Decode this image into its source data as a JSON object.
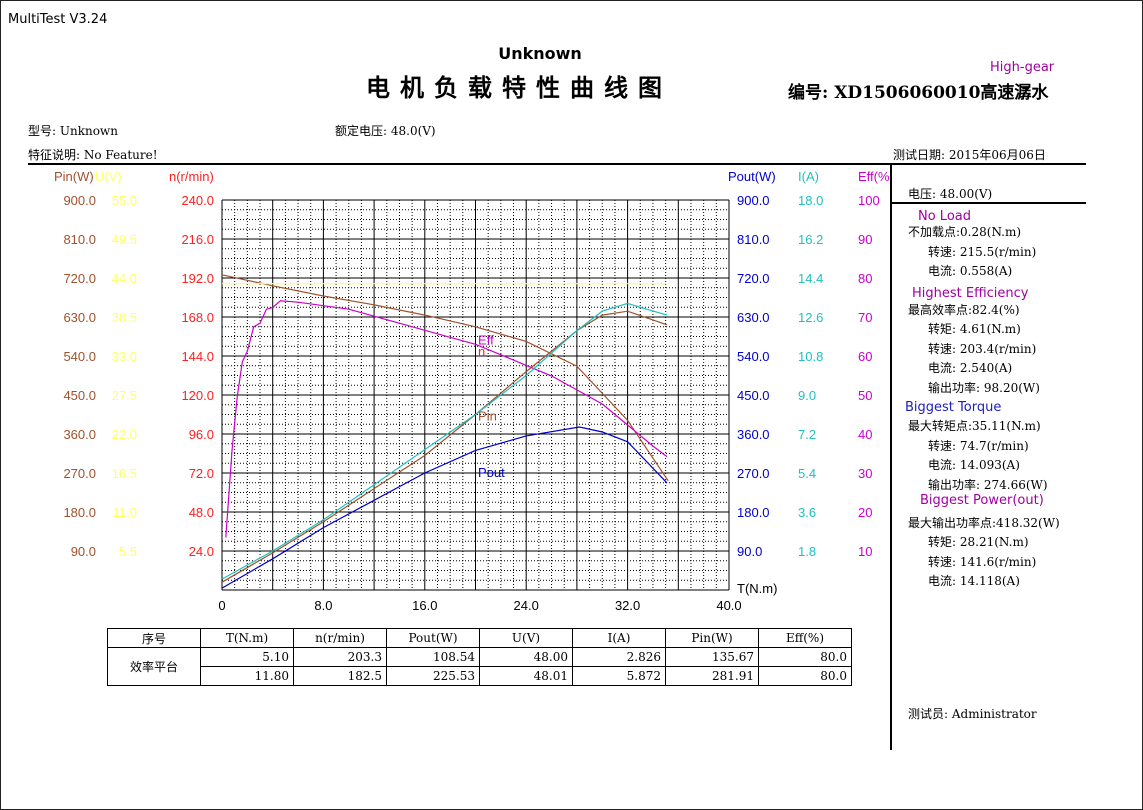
{
  "app_title": "MultiTest V3.24",
  "header": {
    "model_top": "Unknown",
    "main_title": "电机负载特性曲线图",
    "gear": "High-gear",
    "serial": "编号: XD1506060010高速潺水"
  },
  "info": {
    "model": "型号: Unknown",
    "rated_voltage": "额定电压: 48.0(V)",
    "feature": "特征说明: No Feature!",
    "test_date": "测试日期: 2015年06月06日"
  },
  "colors": {
    "pin": "#a0522d",
    "u": "#ffff66",
    "n": "#ff2020",
    "pout": "#0000cc",
    "i": "#20c0c0",
    "eff": "#cc00cc",
    "grid": "#000000"
  },
  "chart_data": {
    "type": "line",
    "xlabel": "T(N.m)",
    "xlim": [
      0,
      40
    ],
    "x_ticks": [
      "0",
      "8.0",
      "16.0",
      "24.0",
      "32.0",
      "40.0"
    ],
    "grid": true,
    "left_axes": [
      {
        "name": "Pin(W)",
        "color": "#a0522d",
        "ticks": [
          "900.0",
          "810.0",
          "720.0",
          "630.0",
          "540.0",
          "450.0",
          "360.0",
          "270.0",
          "180.0",
          "90.0"
        ]
      },
      {
        "name": "U(V)",
        "color": "#ffff66",
        "ticks": [
          "55.0",
          "49.5",
          "44.0",
          "38.5",
          "33.0",
          "27.5",
          "22.0",
          "16.5",
          "11.0",
          "5.5"
        ]
      },
      {
        "name": "n(r/min)",
        "color": "#ff2020",
        "ticks": [
          "240.0",
          "216.0",
          "192.0",
          "168.0",
          "144.0",
          "120.0",
          "96.0",
          "72.0",
          "48.0",
          "24.0"
        ]
      }
    ],
    "right_axes": [
      {
        "name": "Pout(W)",
        "color": "#0000cc",
        "ticks": [
          "900.0",
          "810.0",
          "720.0",
          "630.0",
          "540.0",
          "450.0",
          "360.0",
          "270.0",
          "180.0",
          "90.0"
        ]
      },
      {
        "name": "I(A)",
        "color": "#20c0c0",
        "ticks": [
          "18.0",
          "16.2",
          "14.4",
          "12.6",
          "10.8",
          "9.0",
          "7.2",
          "5.4",
          "3.6",
          "1.8"
        ]
      },
      {
        "name": "Eff(%)",
        "color": "#cc00cc",
        "ticks": [
          "100",
          "90",
          "80",
          "70",
          "60",
          "50",
          "40",
          "30",
          "20",
          "10"
        ]
      }
    ],
    "series": [
      {
        "name": "n",
        "axis": "n(r/min)",
        "color": "#a0522d",
        "x": [
          0,
          4,
          8,
          12,
          16,
          20,
          24,
          28,
          32,
          35.2
        ],
        "y": [
          215.5,
          208,
          201,
          195,
          188,
          180,
          170,
          153,
          116,
          74.7
        ]
      },
      {
        "name": "Eff",
        "axis": "Eff(%)",
        "color": "#cc00cc",
        "x": [
          0.3,
          0.8,
          1.2,
          1.6,
          2,
          2.5,
          3,
          3.5,
          4,
          4.61,
          6,
          8,
          10,
          12,
          14,
          16,
          18,
          20,
          22,
          24,
          26,
          28,
          30,
          32,
          33,
          34,
          35.1
        ],
        "y": [
          15,
          40,
          55,
          65,
          68,
          75,
          76,
          80,
          80.5,
          82.4,
          82,
          81,
          80,
          78,
          76,
          74,
          72,
          70,
          67,
          64,
          61,
          57,
          53,
          47,
          44,
          41,
          38
        ]
      },
      {
        "name": "Pin",
        "axis": "Pin(W)",
        "color": "#a0522d",
        "x": [
          0,
          4,
          8,
          12,
          16,
          20,
          24,
          28,
          30,
          32,
          35.1
        ],
        "y": [
          20,
          95,
          175,
          260,
          345,
          450,
          560,
          665,
          705,
          715,
          680
        ]
      },
      {
        "name": "I",
        "axis": "I(A)",
        "color": "#20c0c0",
        "x": [
          0,
          4,
          8,
          12,
          16,
          20,
          24,
          28,
          30,
          32,
          33,
          35.1
        ],
        "y": [
          0.56,
          2,
          3.6,
          5.4,
          7.2,
          9,
          11,
          13.3,
          14.3,
          14.7,
          14.5,
          14.1
        ]
      },
      {
        "name": "Pout",
        "axis": "Pout(W)",
        "color": "#0000cc",
        "x": [
          0,
          4,
          8,
          12,
          16,
          20,
          24,
          28.2,
          30,
          32,
          35.1
        ],
        "y": [
          5,
          80,
          160,
          230,
          300,
          358,
          395,
          418,
          405,
          380,
          275
        ]
      },
      {
        "name": "U",
        "axis": "U(V)",
        "color": "#ffff66",
        "x": [
          0,
          35.1
        ],
        "y": [
          48.0,
          48.0
        ]
      }
    ],
    "curve_labels": [
      {
        "text": "Eff",
        "color": "#cc00cc",
        "x": 20.2,
        "pin": 630
      },
      {
        "text": "n",
        "color": "#ff2020",
        "x": 20.2,
        "pin": 600
      },
      {
        "text": "Pin",
        "color": "#a0522d",
        "x": 20.2,
        "pin": 435
      },
      {
        "text": "Pout",
        "color": "#0000cc",
        "x": 20.2,
        "pin": 290
      }
    ]
  },
  "panel": {
    "voltage": "电压:   48.00(V)",
    "sections": [
      {
        "title": "No  Load",
        "rows": [
          "不加载点:0.28(N.m)",
          "转速: 215.5(r/min)",
          "电流: 0.558(A)"
        ]
      },
      {
        "title": "Highest  Efficiency",
        "rows": [
          "最高效率点:82.4(%)",
          "转矩: 4.61(N.m)",
          "转速: 203.4(r/min)",
          "电流: 2.540(A)",
          "输出功率: 98.20(W)"
        ]
      },
      {
        "title": "Biggest  Torque",
        "rows": [
          "最大转矩点:35.11(N.m)",
          "转速: 74.7(r/min)",
          "电流: 14.093(A)",
          "输出功率: 274.66(W)"
        ]
      },
      {
        "title": "Biggest  Power(out)",
        "rows": [
          "最大输出功率点:418.32(W)",
          "转矩: 28.21(N.m)",
          "转速: 141.6(r/min)",
          "电流: 14.118(A)"
        ]
      }
    ],
    "tester": "测试员: Administrator"
  },
  "table": {
    "headers": [
      "序号",
      "T(N.m)",
      "n(r/min)",
      "Pout(W)",
      "U(V)",
      "I(A)",
      "Pin(W)",
      "Eff(%)"
    ],
    "group_label": "效率平台",
    "rows": [
      [
        "5.10",
        "203.3",
        "108.54",
        "48.00",
        "2.826",
        "135.67",
        "80.0"
      ],
      [
        "11.80",
        "182.5",
        "225.53",
        "48.01",
        "5.872",
        "281.91",
        "80.0"
      ]
    ]
  }
}
